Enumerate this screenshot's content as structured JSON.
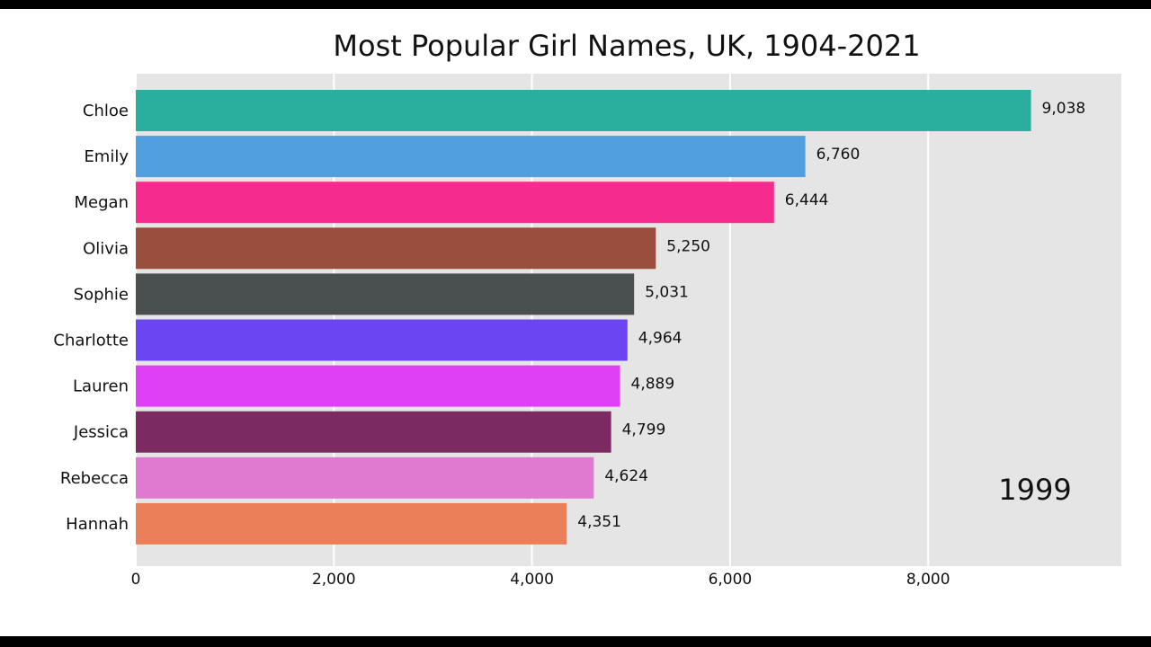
{
  "chart_data": {
    "type": "barh",
    "title": "Most Popular Girl Names, UK, 1904-2021",
    "categories": [
      "Chloe",
      "Emily",
      "Megan",
      "Olivia",
      "Sophie",
      "Charlotte",
      "Lauren",
      "Jessica",
      "Rebecca",
      "Hannah"
    ],
    "values": [
      9038,
      6760,
      6444,
      5250,
      5031,
      4964,
      4889,
      4799,
      4624,
      4351
    ],
    "value_labels": [
      "9,038",
      "6,760",
      "6,444",
      "5,250",
      "5,031",
      "4,964",
      "4,889",
      "4,799",
      "4,624",
      "4,351"
    ],
    "colors": [
      "#2aae9e",
      "#529fe0",
      "#f52b8e",
      "#9a4f3e",
      "#4a4f50",
      "#6b45f2",
      "#e040f5",
      "#7c2a62",
      "#e07ad0",
      "#ea7f5a"
    ],
    "annotation": "1999",
    "xlim": [
      0,
      9950
    ],
    "xticks": [
      0,
      {
        "value": 2000,
        "label": "2,000"
      },
      {
        "value": 4000,
        "label": "4,000"
      },
      {
        "value": 6000,
        "label": "6,000"
      },
      {
        "value": 8000,
        "label": "8,000"
      }
    ],
    "grid": true
  }
}
